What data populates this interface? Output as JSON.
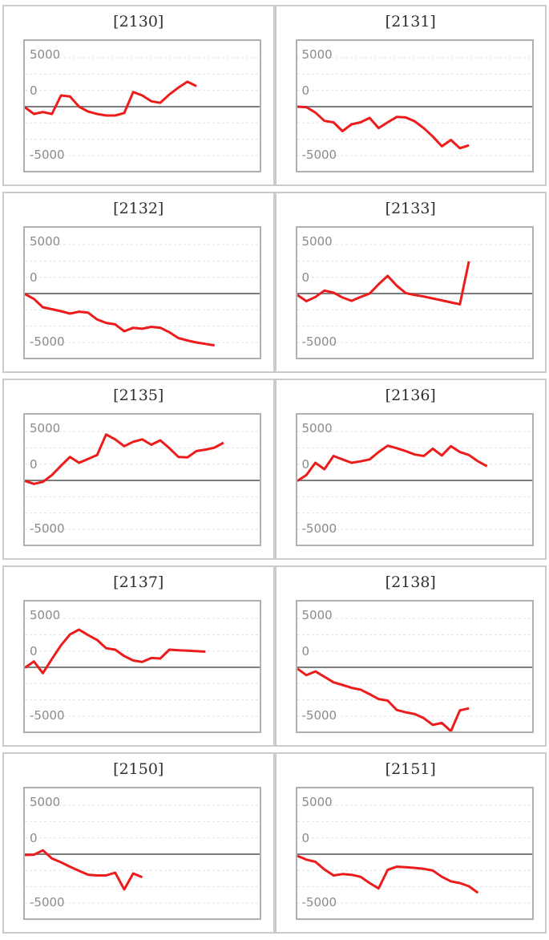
{
  "page": {
    "background": "#ffffff"
  },
  "theme": {
    "line_red": "#ec1c1c",
    "zero_line_gray": "#7d7d7d",
    "grid_dot_gray": "#e1e1e1",
    "plot_border_gray": "#b0b0b0",
    "panel_border_gray": "#cbcbcb",
    "tick_label_gray": "#8b8b8b",
    "title_color": "#2f2f2f"
  },
  "y_axis": {
    "tick_labels": [
      "5000",
      "0",
      "-5000"
    ],
    "tick_values": [
      5000,
      0,
      -5000
    ],
    "grid_values": [
      5000,
      3333,
      1667,
      0,
      -1667,
      -3333,
      -5000
    ],
    "ylim": [
      -6700,
      6700
    ]
  },
  "chart_data": [
    {
      "id": "2130",
      "title": "[2130]",
      "type": "line",
      "series_color": "#ec1c1c",
      "ylabel": "",
      "xlabel": "",
      "values": [
        -60,
        -750,
        -550,
        -750,
        1150,
        1050,
        0,
        -500,
        -750,
        -900,
        -900,
        -650,
        1500,
        1150,
        550,
        400,
        1250,
        1950,
        2550,
        2100
      ]
    },
    {
      "id": "2131",
      "title": "[2131]",
      "type": "line",
      "series_color": "#ec1c1c",
      "ylabel": "",
      "xlabel": "",
      "values": [
        0,
        -50,
        -600,
        -1450,
        -1600,
        -2500,
        -1800,
        -1600,
        -1150,
        -2200,
        -1600,
        -1050,
        -1100,
        -1500,
        -2200,
        -3050,
        -4050,
        -3400,
        -4250,
        -3950
      ]
    },
    {
      "id": "2132",
      "title": "[2132]",
      "type": "line",
      "series_color": "#ec1c1c",
      "ylabel": "",
      "xlabel": "",
      "values": [
        -50,
        -550,
        -1400,
        -1600,
        -1800,
        -2050,
        -1850,
        -1950,
        -2650,
        -3000,
        -3150,
        -3850,
        -3500,
        -3600,
        -3400,
        -3500,
        -3950,
        -4550,
        -4800,
        -5000,
        -5150,
        -5300
      ]
    },
    {
      "id": "2133",
      "title": "[2133]",
      "type": "line",
      "series_color": "#ec1c1c",
      "ylabel": "",
      "xlabel": "",
      "values": [
        -150,
        -780,
        -350,
        300,
        100,
        -400,
        -750,
        -350,
        0,
        950,
        1800,
        800,
        50,
        -150,
        -300,
        -500,
        -700,
        -900,
        -1100,
        3300
      ]
    },
    {
      "id": "2135",
      "title": "[2135]",
      "type": "line",
      "series_color": "#ec1c1c",
      "ylabel": "",
      "xlabel": "",
      "values": [
        -50,
        -350,
        -150,
        550,
        1500,
        2400,
        1800,
        2200,
        2600,
        4700,
        4200,
        3500,
        3950,
        4200,
        3650,
        4100,
        3300,
        2400,
        2350,
        3000,
        3150,
        3350,
        3850
      ]
    },
    {
      "id": "2136",
      "title": "[2136]",
      "type": "line",
      "series_color": "#ec1c1c",
      "ylabel": "",
      "xlabel": "",
      "values": [
        -50,
        550,
        1800,
        1150,
        2500,
        2150,
        1800,
        1950,
        2150,
        2900,
        3550,
        3300,
        3000,
        2650,
        2500,
        3250,
        2550,
        3500,
        2900,
        2600,
        1950,
        1450
      ]
    },
    {
      "id": "2137",
      "title": "[2137]",
      "type": "line",
      "series_color": "#ec1c1c",
      "ylabel": "",
      "xlabel": "",
      "values": [
        -50,
        600,
        -600,
        850,
        2250,
        3350,
        3850,
        3300,
        2800,
        1950,
        1800,
        1150,
        700,
        550,
        950,
        900,
        1800,
        1750,
        1700,
        1650,
        1600
      ]
    },
    {
      "id": "2138",
      "title": "[2138]",
      "type": "line",
      "series_color": "#ec1c1c",
      "ylabel": "",
      "xlabel": "",
      "values": [
        -140,
        -800,
        -420,
        -970,
        -1530,
        -1800,
        -2100,
        -2280,
        -2750,
        -3250,
        -3400,
        -4360,
        -4600,
        -4780,
        -5200,
        -5890,
        -5690,
        -6530,
        -4400,
        -4200
      ]
    },
    {
      "id": "2150",
      "title": "[2150]",
      "type": "line",
      "series_color": "#ec1c1c",
      "ylabel": "",
      "xlabel": "",
      "values": [
        -80,
        -60,
        390,
        -440,
        -830,
        -1280,
        -1700,
        -2100,
        -2170,
        -2170,
        -1890,
        -3600,
        -1970,
        -2360
      ]
    },
    {
      "id": "2151",
      "title": "[2151]",
      "type": "line",
      "series_color": "#ec1c1c",
      "ylabel": "",
      "xlabel": "",
      "values": [
        -170,
        -560,
        -780,
        -1560,
        -2170,
        -2030,
        -2110,
        -2310,
        -2950,
        -3500,
        -1610,
        -1280,
        -1330,
        -1400,
        -1500,
        -1670,
        -2310,
        -2780,
        -2950,
        -3280,
        -3950
      ]
    }
  ]
}
